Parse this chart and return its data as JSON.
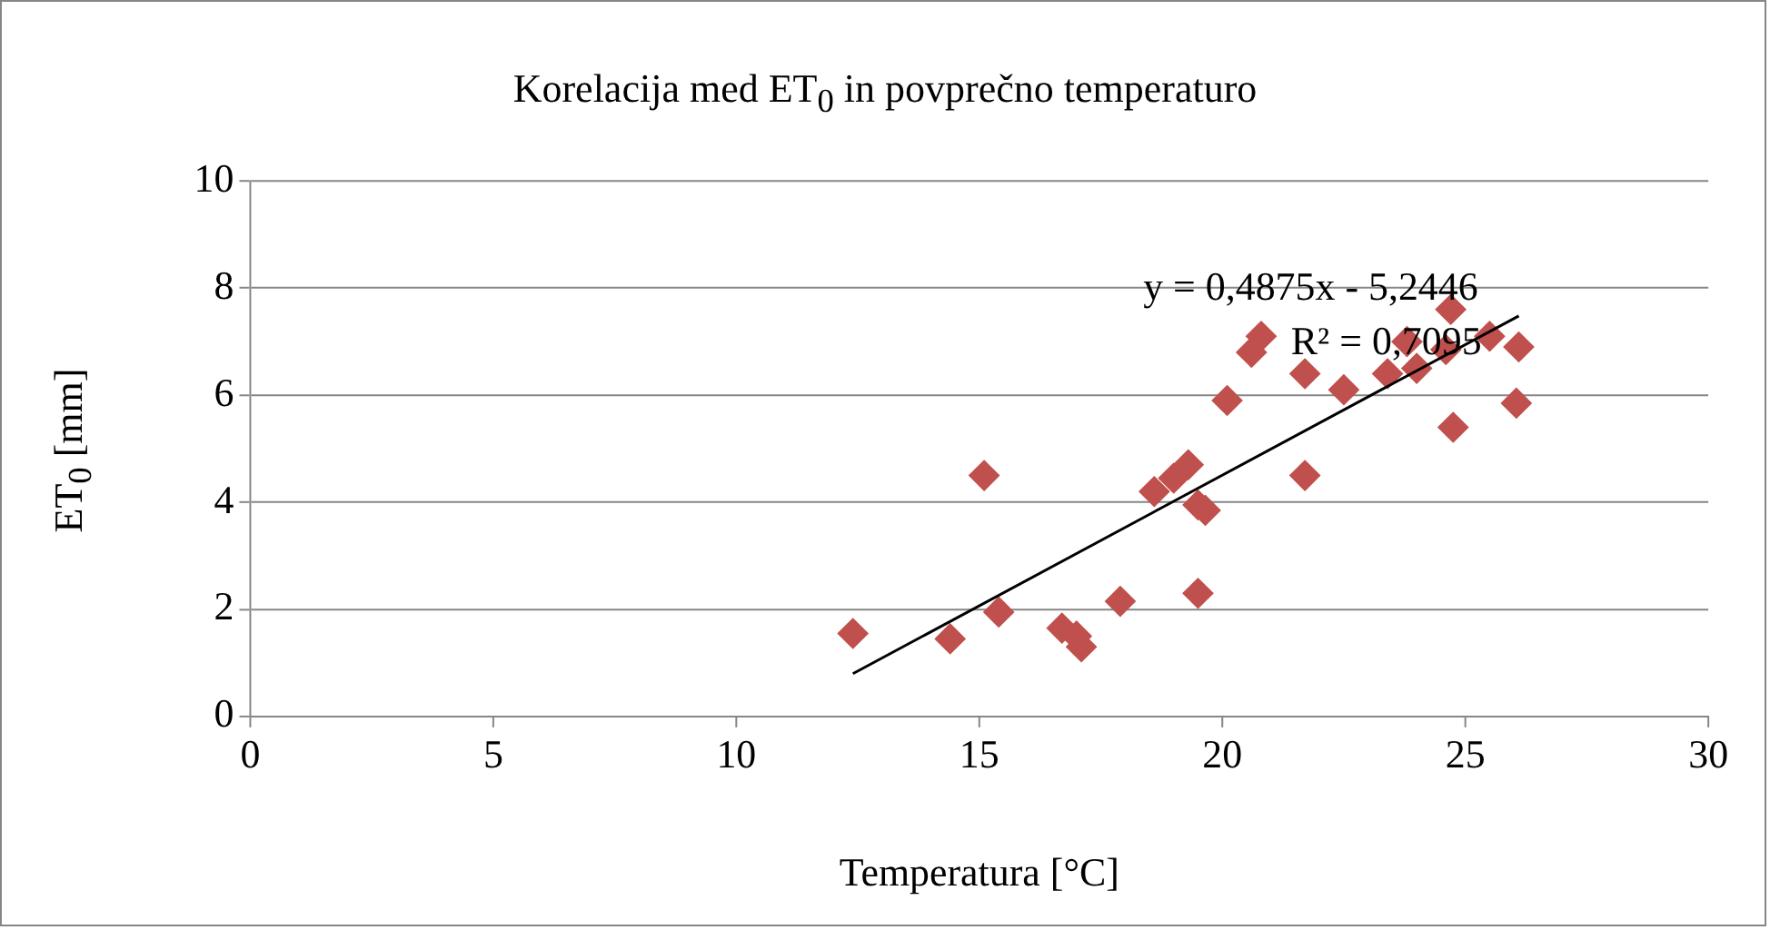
{
  "chart_data": {
    "type": "scatter",
    "title": "Korelacija med ET$_{0}$ in povprečno temperaturo",
    "xlabel": "Temperatura [°C]",
    "ylabel": "ET$_{0}$ [mm]",
    "xlim": [
      0,
      30
    ],
    "xticks": [
      0,
      5,
      10,
      15,
      20,
      25,
      30
    ],
    "ylim": [
      0,
      10
    ],
    "yticks": [
      0,
      2,
      4,
      6,
      8,
      10
    ],
    "grid": "y",
    "legend": false,
    "annotations": [
      "y = 0,4875x - 5,2446",
      "R² = 0,7095"
    ],
    "series": [
      {
        "color": "#c0504d",
        "marker": "diamond",
        "x": [
          12.4,
          14.4,
          15.1,
          15.4,
          16.7,
          17.0,
          17.1,
          17.9,
          18.6,
          19.0,
          19.3,
          19.5,
          19.65,
          19.5,
          20.1,
          20.8,
          20.6,
          21.7,
          21.7,
          22.5,
          23.4,
          23.8,
          24.0,
          24.7,
          24.6,
          24.75,
          25.5,
          26.1,
          26.05
        ],
        "values": [
          1.55,
          1.45,
          4.5,
          1.95,
          1.65,
          1.5,
          1.3,
          2.15,
          4.2,
          4.45,
          4.7,
          3.95,
          3.85,
          2.3,
          5.9,
          7.1,
          6.8,
          6.4,
          4.5,
          6.1,
          6.4,
          7.0,
          6.5,
          7.6,
          6.85,
          5.4,
          7.1,
          6.9,
          5.85
        ]
      },
      {
        "type": "line",
        "color": "#000000",
        "x": [
          12.4,
          26.1
        ],
        "values": [
          0.8,
          7.48
        ]
      }
    ]
  }
}
